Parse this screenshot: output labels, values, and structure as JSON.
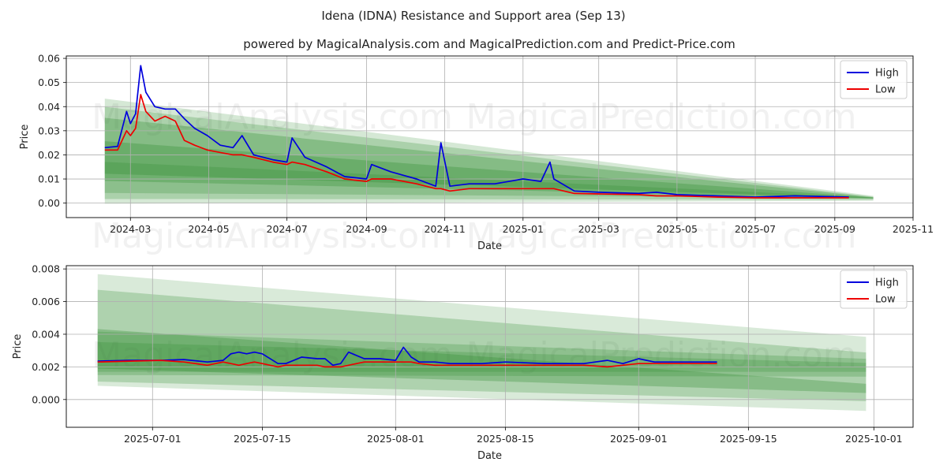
{
  "figure": {
    "title": "Idena (IDNA) Resistance and Support area (Sep 13)",
    "subtitle": "powered by MagicalAnalysis.com and MagicalPrediction.com and Predict-Price.com",
    "watermarks": [
      "MagicalAnalysis.com",
      "MagicalPrediction.com"
    ]
  },
  "colors": {
    "high": "#0000dd",
    "low": "#ee0000",
    "band": "#2e8b2e",
    "grid": "#b0b0b0"
  },
  "chart_data": [
    {
      "type": "line",
      "xlabel": "Date",
      "ylabel": "Price",
      "x_ticks": [
        "2024-03",
        "2024-05",
        "2024-07",
        "2024-09",
        "2024-11",
        "2025-01",
        "2025-03",
        "2025-05",
        "2025-07",
        "2025-09",
        "2025-11"
      ],
      "y_ticks": [
        "0.00",
        "0.01",
        "0.02",
        "0.03",
        "0.04",
        "0.05",
        "0.06"
      ],
      "xlim": [
        "2024-01-11",
        "2025-11-01"
      ],
      "ylim": [
        -0.006,
        0.061
      ],
      "grid": true,
      "legend": "top-right",
      "series": [
        {
          "name": "High",
          "x": [
            "2024-02-10",
            "2024-02-20",
            "2024-02-27",
            "2024-03-01",
            "2024-03-05",
            "2024-03-09",
            "2024-03-13",
            "2024-03-20",
            "2024-03-28",
            "2024-04-05",
            "2024-04-12",
            "2024-04-20",
            "2024-04-30",
            "2024-05-10",
            "2024-05-20",
            "2024-05-27",
            "2024-06-05",
            "2024-06-20",
            "2024-07-01",
            "2024-07-05",
            "2024-07-15",
            "2024-08-01",
            "2024-08-15",
            "2024-09-01",
            "2024-09-05",
            "2024-09-20",
            "2024-10-10",
            "2024-10-25",
            "2024-10-29",
            "2024-11-05",
            "2024-11-20",
            "2024-12-10",
            "2025-01-01",
            "2025-01-15",
            "2025-01-22",
            "2025-01-25",
            "2025-02-10",
            "2025-03-01",
            "2025-04-01",
            "2025-04-15",
            "2025-05-01",
            "2025-06-01",
            "2025-07-01",
            "2025-08-01",
            "2025-09-12"
          ],
          "values": [
            0.023,
            0.0235,
            0.038,
            0.033,
            0.037,
            0.057,
            0.046,
            0.04,
            0.039,
            0.039,
            0.035,
            0.031,
            0.028,
            0.024,
            0.023,
            0.028,
            0.02,
            0.018,
            0.017,
            0.027,
            0.019,
            0.015,
            0.011,
            0.01,
            0.016,
            0.013,
            0.01,
            0.007,
            0.025,
            0.007,
            0.008,
            0.008,
            0.01,
            0.009,
            0.017,
            0.01,
            0.005,
            0.0045,
            0.004,
            0.0045,
            0.0035,
            0.003,
            0.0025,
            0.003,
            0.0025
          ]
        },
        {
          "name": "Low",
          "x": [
            "2024-02-10",
            "2024-02-20",
            "2024-02-27",
            "2024-03-01",
            "2024-03-05",
            "2024-03-09",
            "2024-03-13",
            "2024-03-20",
            "2024-03-28",
            "2024-04-05",
            "2024-04-12",
            "2024-04-20",
            "2024-04-30",
            "2024-05-10",
            "2024-05-20",
            "2024-05-27",
            "2024-06-05",
            "2024-06-20",
            "2024-07-01",
            "2024-07-05",
            "2024-07-15",
            "2024-08-01",
            "2024-08-15",
            "2024-09-01",
            "2024-09-05",
            "2024-09-20",
            "2024-10-10",
            "2024-10-25",
            "2024-10-29",
            "2024-11-05",
            "2024-11-20",
            "2024-12-10",
            "2025-01-01",
            "2025-01-15",
            "2025-01-22",
            "2025-01-25",
            "2025-02-10",
            "2025-03-01",
            "2025-04-01",
            "2025-04-15",
            "2025-05-01",
            "2025-06-01",
            "2025-07-01",
            "2025-08-01",
            "2025-09-12"
          ],
          "values": [
            0.022,
            0.022,
            0.03,
            0.028,
            0.031,
            0.045,
            0.038,
            0.034,
            0.036,
            0.034,
            0.026,
            0.024,
            0.022,
            0.021,
            0.02,
            0.02,
            0.019,
            0.017,
            0.016,
            0.017,
            0.016,
            0.013,
            0.01,
            0.009,
            0.01,
            0.01,
            0.008,
            0.006,
            0.006,
            0.005,
            0.006,
            0.006,
            0.006,
            0.006,
            0.006,
            0.006,
            0.004,
            0.0038,
            0.0035,
            0.003,
            0.003,
            0.0025,
            0.0022,
            0.0022,
            0.0022
          ]
        }
      ]
    },
    {
      "type": "line",
      "xlabel": "Date",
      "ylabel": "Price",
      "x_ticks": [
        "2025-07-01",
        "2025-07-15",
        "2025-08-01",
        "2025-08-15",
        "2025-09-01",
        "2025-09-15",
        "2025-10-01"
      ],
      "y_ticks": [
        "0.000",
        "0.002",
        "0.004",
        "0.006",
        "0.008"
      ],
      "xlim": [
        "2025-06-20",
        "2025-10-06"
      ],
      "ylim": [
        -0.0017,
        0.0082
      ],
      "grid": true,
      "legend": "top-right",
      "series": [
        {
          "name": "High",
          "x": [
            "2025-06-24",
            "2025-06-28",
            "2025-07-02",
            "2025-07-05",
            "2025-07-08",
            "2025-07-10",
            "2025-07-11",
            "2025-07-12",
            "2025-07-13",
            "2025-07-14",
            "2025-07-15",
            "2025-07-17",
            "2025-07-18",
            "2025-07-20",
            "2025-07-22",
            "2025-07-23",
            "2025-07-24",
            "2025-07-25",
            "2025-07-26",
            "2025-07-28",
            "2025-07-30",
            "2025-08-01",
            "2025-08-02",
            "2025-08-03",
            "2025-08-04",
            "2025-08-06",
            "2025-08-08",
            "2025-08-12",
            "2025-08-15",
            "2025-08-20",
            "2025-08-25",
            "2025-08-28",
            "2025-08-30",
            "2025-09-01",
            "2025-09-03",
            "2025-09-05",
            "2025-09-11"
          ],
          "values": [
            0.00235,
            0.0024,
            0.0024,
            0.00245,
            0.0023,
            0.0024,
            0.0028,
            0.0029,
            0.0028,
            0.0029,
            0.0028,
            0.0022,
            0.0022,
            0.0026,
            0.0025,
            0.0025,
            0.0021,
            0.0022,
            0.0029,
            0.0025,
            0.0025,
            0.0024,
            0.0032,
            0.0026,
            0.0023,
            0.0023,
            0.0022,
            0.0022,
            0.0023,
            0.0022,
            0.0022,
            0.0024,
            0.0022,
            0.0025,
            0.0023,
            0.0023,
            0.0023
          ]
        },
        {
          "name": "Low",
          "x": [
            "2025-06-24",
            "2025-06-28",
            "2025-07-02",
            "2025-07-05",
            "2025-07-08",
            "2025-07-10",
            "2025-07-11",
            "2025-07-12",
            "2025-07-13",
            "2025-07-14",
            "2025-07-15",
            "2025-07-17",
            "2025-07-18",
            "2025-07-20",
            "2025-07-22",
            "2025-07-23",
            "2025-07-24",
            "2025-07-25",
            "2025-07-26",
            "2025-07-28",
            "2025-07-30",
            "2025-08-01",
            "2025-08-02",
            "2025-08-03",
            "2025-08-04",
            "2025-08-06",
            "2025-08-08",
            "2025-08-12",
            "2025-08-15",
            "2025-08-20",
            "2025-08-25",
            "2025-08-28",
            "2025-08-30",
            "2025-09-01",
            "2025-09-03",
            "2025-09-05",
            "2025-09-11"
          ],
          "values": [
            0.0023,
            0.00235,
            0.0024,
            0.0023,
            0.0021,
            0.0023,
            0.0022,
            0.0021,
            0.0022,
            0.0023,
            0.0022,
            0.002,
            0.0021,
            0.0021,
            0.0021,
            0.002,
            0.002,
            0.002,
            0.0021,
            0.0023,
            0.0023,
            0.0023,
            0.0023,
            0.0023,
            0.0022,
            0.0021,
            0.0021,
            0.0021,
            0.0021,
            0.0021,
            0.0021,
            0.002,
            0.0021,
            0.0022,
            0.0022,
            0.0022,
            0.0022
          ]
        }
      ]
    }
  ]
}
